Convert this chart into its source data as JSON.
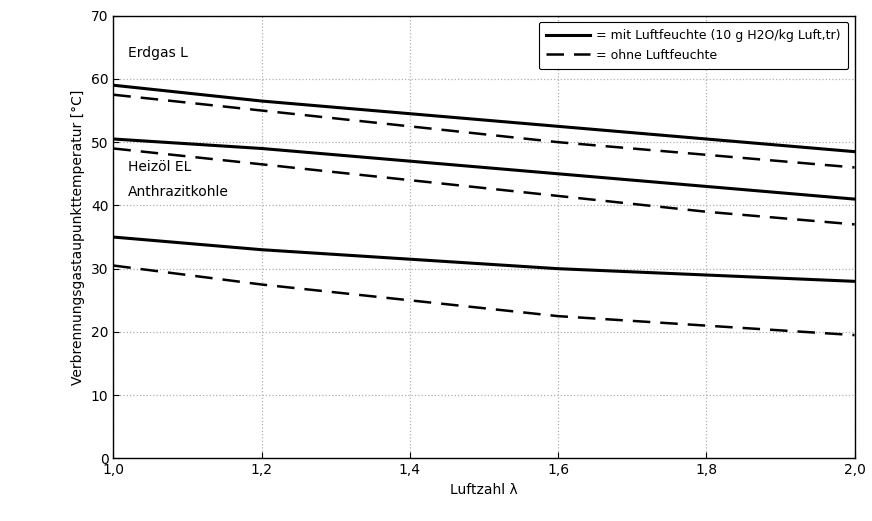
{
  "title": "",
  "xlabel": "Luftzahl λ",
  "ylabel": "Verbrennungsgastaupunkttemperatur [°C]",
  "xlim": [
    1.0,
    2.0
  ],
  "ylim": [
    0,
    70
  ],
  "xticks": [
    1.0,
    1.2,
    1.4,
    1.6,
    1.8,
    2.0
  ],
  "yticks": [
    0,
    10,
    20,
    30,
    40,
    50,
    60,
    70
  ],
  "xtick_labels": [
    "1,0",
    "1,2",
    "1,4",
    "1,6",
    "1,8",
    "2,0"
  ],
  "ytick_labels": [
    "0",
    "10",
    "20",
    "30",
    "40",
    "50",
    "60",
    "70"
  ],
  "label_erdgas": "Erdgas L",
  "label_heizoel": "Heizöl EL",
  "label_anthrazit": "Anthrazitkohle",
  "legend_solid": "= mit Luftfeuchte (10 g H2O/kg Luft,tr)",
  "legend_dashed": "= ohne Luftfeuchte",
  "x": [
    1.0,
    1.2,
    1.4,
    1.6,
    1.8,
    2.0
  ],
  "erdgas_solid": [
    59.0,
    56.5,
    54.5,
    52.5,
    50.5,
    48.5
  ],
  "erdgas_dashed": [
    57.5,
    55.0,
    52.5,
    50.0,
    48.0,
    46.0
  ],
  "heizoel_solid": [
    50.5,
    49.0,
    47.0,
    45.0,
    43.0,
    41.0
  ],
  "heizoel_dashed": [
    49.0,
    46.5,
    44.0,
    41.5,
    39.0,
    37.0
  ],
  "anthrazit_solid": [
    35.0,
    33.0,
    31.5,
    30.0,
    29.0,
    28.0
  ],
  "anthrazit_dashed": [
    30.5,
    27.5,
    25.0,
    22.5,
    21.0,
    19.5
  ],
  "line_color": "#000000",
  "grid_color": "#b0b0b0",
  "bg_color": "#ffffff",
  "linewidth_solid": 2.2,
  "linewidth_dashed": 1.8,
  "fontsize_labels": 10,
  "fontsize_ticks": 10,
  "fontsize_legend": 9,
  "fontsize_annot": 10
}
